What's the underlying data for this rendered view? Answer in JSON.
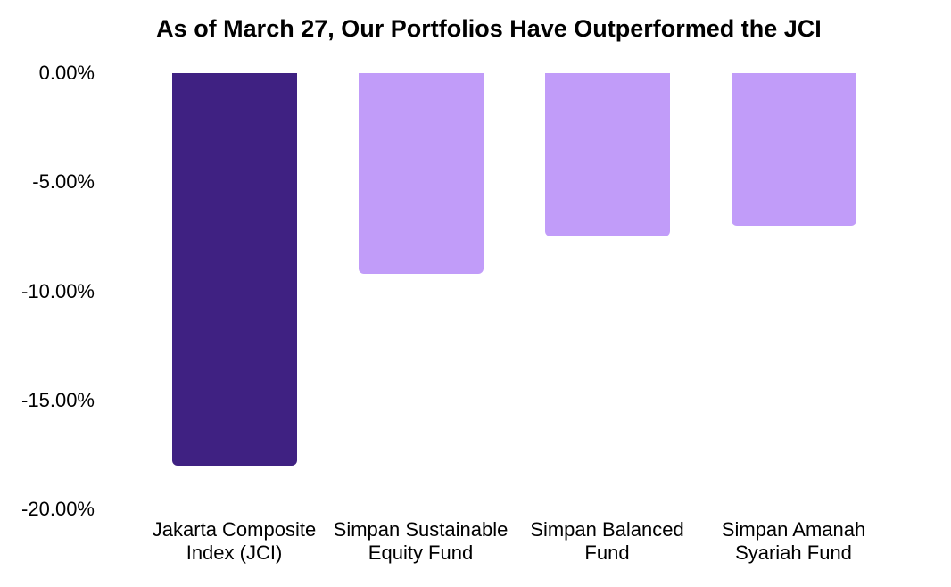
{
  "page": {
    "background_color": "#ffffff",
    "text_color": "#000000"
  },
  "chart_data": {
    "type": "bar",
    "title": "As of March 27, Our Portfolios Have Outperformed the JCI",
    "categories": [
      "Jakarta Composite Index (JCI)",
      "Simpan Sustainable Equity Fund",
      "Simpan Balanced Fund",
      "Simpan Amanah Syariah Fund"
    ],
    "category_label_lines": [
      [
        "Jakarta Composite",
        "Index (JCI)"
      ],
      [
        "Simpan Sustainable",
        "Equity Fund"
      ],
      [
        "Simpan Balanced",
        "Fund"
      ],
      [
        "Simpan Amanah",
        "Syariah Fund"
      ]
    ],
    "values": [
      -18.0,
      -9.2,
      -7.5,
      -7.0
    ],
    "unit": "percent",
    "bar_colors": [
      "#3f2182",
      "#c19cf9",
      "#c19cf9",
      "#c19cf9"
    ],
    "highlight_color": "#3f2182",
    "fund_color": "#c19cf9",
    "y_tick_labels": [
      "0.00%",
      "-5.00%",
      "-10.00%",
      "-15.00%",
      "-20.00%"
    ],
    "y_tick_values": [
      0,
      -5,
      -10,
      -15,
      -20
    ],
    "ylim": [
      -20,
      0
    ],
    "grid": false,
    "legend": "none",
    "axis_lines": "none"
  }
}
